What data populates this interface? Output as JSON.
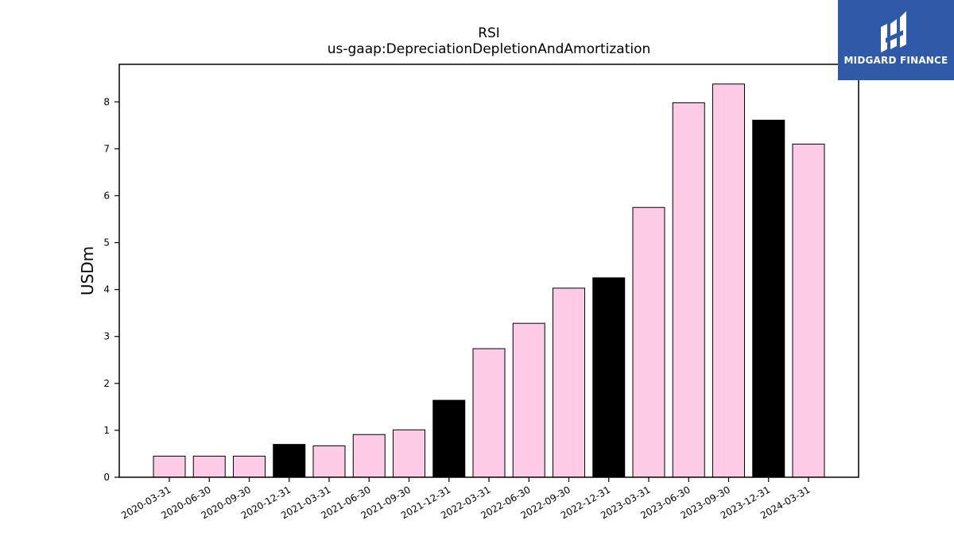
{
  "chart_data": {
    "type": "bar",
    "title": "RSI",
    "subtitle": "us-gaap:DepreciationDepletionAndAmortization",
    "xlabel": "",
    "ylabel": "USDm",
    "ylim": [
      0,
      8.8
    ],
    "yticks": [
      0,
      1,
      2,
      3,
      4,
      5,
      6,
      7,
      8
    ],
    "grid": false,
    "categories": [
      "2020-03-31",
      "2020-06-30",
      "2020-09-30",
      "2020-12-31",
      "2021-03-31",
      "2021-06-30",
      "2021-09-30",
      "2021-12-31",
      "2022-03-31",
      "2022-06-30",
      "2022-09-30",
      "2022-12-31",
      "2023-03-31",
      "2023-06-30",
      "2023-09-30",
      "2023-12-31",
      "2024-03-31"
    ],
    "values": [
      0.45,
      0.45,
      0.45,
      0.7,
      0.67,
      0.91,
      1.01,
      1.64,
      2.74,
      3.28,
      4.03,
      4.25,
      5.75,
      7.98,
      8.38,
      7.61,
      7.1
    ],
    "highlight": [
      false,
      false,
      false,
      true,
      false,
      false,
      false,
      true,
      false,
      false,
      false,
      true,
      false,
      false,
      false,
      true,
      false
    ],
    "colors": {
      "normal": "#fccbe6",
      "highlight": "#000000",
      "edge": "#000000"
    }
  },
  "logo": {
    "text": "MIDGARD FINANCE",
    "background": "#2f5aa8"
  }
}
